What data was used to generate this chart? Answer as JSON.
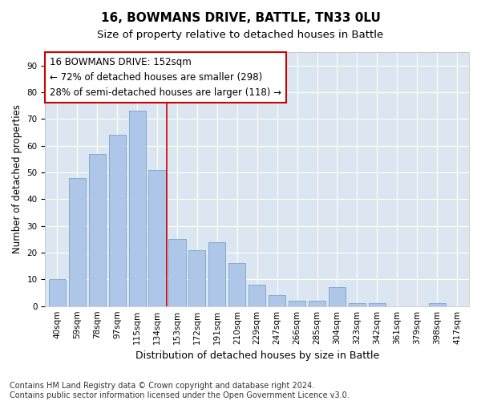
{
  "title": "16, BOWMANS DRIVE, BATTLE, TN33 0LU",
  "subtitle": "Size of property relative to detached houses in Battle",
  "xlabel": "Distribution of detached houses by size in Battle",
  "ylabel": "Number of detached properties",
  "bar_color": "#aec6e8",
  "bar_edge_color": "#6699cc",
  "plot_bg_color": "#dce6f0",
  "fig_bg_color": "#ffffff",
  "grid_color": "#ffffff",
  "categories": [
    "40sqm",
    "59sqm",
    "78sqm",
    "97sqm",
    "115sqm",
    "134sqm",
    "153sqm",
    "172sqm",
    "191sqm",
    "210sqm",
    "229sqm",
    "247sqm",
    "266sqm",
    "285sqm",
    "304sqm",
    "323sqm",
    "342sqm",
    "361sqm",
    "379sqm",
    "398sqm",
    "417sqm"
  ],
  "values": [
    10,
    48,
    57,
    64,
    73,
    51,
    25,
    21,
    24,
    16,
    8,
    4,
    2,
    2,
    7,
    1,
    1,
    0,
    0,
    1,
    0
  ],
  "property_line_x": 5.5,
  "annotation_line1": "16 BOWMANS DRIVE: 152sqm",
  "annotation_line2": "← 72% of detached houses are smaller (298)",
  "annotation_line3": "28% of semi-detached houses are larger (118) →",
  "annotation_box_color": "#cc0000",
  "vline_color": "#cc0000",
  "ylim": [
    0,
    95
  ],
  "yticks": [
    0,
    10,
    20,
    30,
    40,
    50,
    60,
    70,
    80,
    90
  ],
  "footer_line1": "Contains HM Land Registry data © Crown copyright and database right 2024.",
  "footer_line2": "Contains public sector information licensed under the Open Government Licence v3.0.",
  "title_fontsize": 11,
  "subtitle_fontsize": 9.5,
  "xlabel_fontsize": 9,
  "ylabel_fontsize": 8.5,
  "tick_fontsize": 7.5,
  "annotation_fontsize": 8.5,
  "footer_fontsize": 7
}
